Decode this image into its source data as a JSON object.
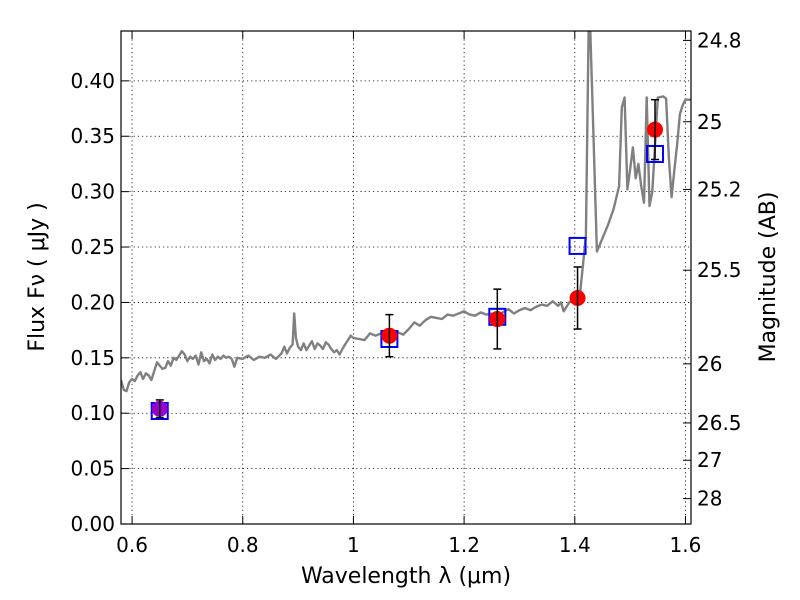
{
  "chart_data": {
    "type": "scatter",
    "xlabel": "Wavelength  λ (μm)",
    "ylabel": "Flux  Fν ( μJy )",
    "y2label": "Magnitude (AB)",
    "xlim": [
      0.58,
      1.61
    ],
    "ylim": [
      0.0,
      0.445
    ],
    "grid": true,
    "x_ticks": [
      {
        "v": 0.6,
        "label": "0.6"
      },
      {
        "v": 0.8,
        "label": "0.8"
      },
      {
        "v": 1.0,
        "label": "1"
      },
      {
        "v": 1.2,
        "label": "1.2"
      },
      {
        "v": 1.4,
        "label": "1.4"
      },
      {
        "v": 1.6,
        "label": "1.6"
      }
    ],
    "y_ticks": [
      {
        "v": 0.0,
        "label": "0.00"
      },
      {
        "v": 0.05,
        "label": "0.05"
      },
      {
        "v": 0.1,
        "label": "0.10"
      },
      {
        "v": 0.15,
        "label": "0.15"
      },
      {
        "v": 0.2,
        "label": "0.20"
      },
      {
        "v": 0.25,
        "label": "0.25"
      },
      {
        "v": 0.3,
        "label": "0.30"
      },
      {
        "v": 0.35,
        "label": "0.35"
      },
      {
        "v": 0.4,
        "label": "0.40"
      }
    ],
    "mag_ticks": [
      {
        "mag": 24.8,
        "label": "24.8"
      },
      {
        "mag": 25.0,
        "label": "25"
      },
      {
        "mag": 25.2,
        "label": "25.2"
      },
      {
        "mag": 25.5,
        "label": "25.5"
      },
      {
        "mag": 26.0,
        "label": "26"
      },
      {
        "mag": 26.5,
        "label": "26.5"
      },
      {
        "mag": 27.0,
        "label": "27"
      },
      {
        "mag": 28.0,
        "label": "28"
      }
    ],
    "series": [
      {
        "kind": "line",
        "color": "#808080",
        "points": [
          [
            0.58,
            0.13
          ],
          [
            0.585,
            0.121
          ],
          [
            0.59,
            0.12
          ],
          [
            0.595,
            0.128
          ],
          [
            0.6,
            0.131
          ],
          [
            0.605,
            0.129
          ],
          [
            0.61,
            0.134
          ],
          [
            0.615,
            0.137
          ],
          [
            0.62,
            0.131
          ],
          [
            0.625,
            0.136
          ],
          [
            0.63,
            0.134
          ],
          [
            0.635,
            0.13
          ],
          [
            0.64,
            0.138
          ],
          [
            0.645,
            0.146
          ],
          [
            0.65,
            0.143
          ],
          [
            0.655,
            0.14
          ],
          [
            0.66,
            0.141
          ],
          [
            0.665,
            0.147
          ],
          [
            0.67,
            0.143
          ],
          [
            0.675,
            0.15
          ],
          [
            0.68,
            0.148
          ],
          [
            0.685,
            0.152
          ],
          [
            0.69,
            0.156
          ],
          [
            0.695,
            0.153
          ],
          [
            0.7,
            0.147
          ],
          [
            0.705,
            0.151
          ],
          [
            0.71,
            0.149
          ],
          [
            0.715,
            0.152
          ],
          [
            0.72,
            0.144
          ],
          [
            0.725,
            0.155
          ],
          [
            0.73,
            0.147
          ],
          [
            0.735,
            0.149
          ],
          [
            0.74,
            0.145
          ],
          [
            0.745,
            0.153
          ],
          [
            0.75,
            0.148
          ],
          [
            0.755,
            0.151
          ],
          [
            0.76,
            0.149
          ],
          [
            0.765,
            0.152
          ],
          [
            0.77,
            0.15
          ],
          [
            0.775,
            0.151
          ],
          [
            0.78,
            0.149
          ],
          [
            0.785,
            0.142
          ],
          [
            0.79,
            0.15
          ],
          [
            0.8,
            0.149
          ],
          [
            0.81,
            0.152
          ],
          [
            0.82,
            0.148
          ],
          [
            0.83,
            0.151
          ],
          [
            0.84,
            0.15
          ],
          [
            0.85,
            0.153
          ],
          [
            0.86,
            0.149
          ],
          [
            0.87,
            0.154
          ],
          [
            0.875,
            0.16
          ],
          [
            0.88,
            0.154
          ],
          [
            0.885,
            0.159
          ],
          [
            0.89,
            0.162
          ],
          [
            0.893,
            0.19
          ],
          [
            0.896,
            0.168
          ],
          [
            0.9,
            0.16
          ],
          [
            0.905,
            0.157
          ],
          [
            0.91,
            0.163
          ],
          [
            0.915,
            0.157
          ],
          [
            0.92,
            0.161
          ],
          [
            0.925,
            0.165
          ],
          [
            0.93,
            0.158
          ],
          [
            0.935,
            0.163
          ],
          [
            0.94,
            0.161
          ],
          [
            0.945,
            0.158
          ],
          [
            0.95,
            0.164
          ],
          [
            0.955,
            0.162
          ],
          [
            0.96,
            0.158
          ],
          [
            0.965,
            0.155
          ],
          [
            0.97,
            0.157
          ],
          [
            0.975,
            0.153
          ],
          [
            0.98,
            0.158
          ],
          [
            0.985,
            0.162
          ],
          [
            0.99,
            0.166
          ],
          [
            0.995,
            0.17
          ],
          [
            1.0,
            0.168
          ],
          [
            1.01,
            0.167
          ],
          [
            1.02,
            0.166
          ],
          [
            1.03,
            0.172
          ],
          [
            1.04,
            0.17
          ],
          [
            1.05,
            0.172
          ],
          [
            1.06,
            0.171
          ],
          [
            1.065,
            0.168
          ],
          [
            1.07,
            0.17
          ],
          [
            1.08,
            0.173
          ],
          [
            1.09,
            0.171
          ],
          [
            1.1,
            0.176
          ],
          [
            1.11,
            0.182
          ],
          [
            1.12,
            0.179
          ],
          [
            1.13,
            0.184
          ],
          [
            1.14,
            0.187
          ],
          [
            1.15,
            0.186
          ],
          [
            1.16,
            0.185
          ],
          [
            1.17,
            0.189
          ],
          [
            1.18,
            0.188
          ],
          [
            1.19,
            0.19
          ],
          [
            1.2,
            0.192
          ],
          [
            1.21,
            0.189
          ],
          [
            1.22,
            0.188
          ],
          [
            1.23,
            0.191
          ],
          [
            1.24,
            0.189
          ],
          [
            1.25,
            0.19
          ],
          [
            1.26,
            0.186
          ],
          [
            1.27,
            0.191
          ],
          [
            1.28,
            0.194
          ],
          [
            1.29,
            0.19
          ],
          [
            1.3,
            0.193
          ],
          [
            1.31,
            0.195
          ],
          [
            1.32,
            0.193
          ],
          [
            1.33,
            0.196
          ],
          [
            1.34,
            0.198
          ],
          [
            1.35,
            0.197
          ],
          [
            1.36,
            0.201
          ],
          [
            1.37,
            0.197
          ],
          [
            1.375,
            0.2
          ],
          [
            1.38,
            0.192
          ],
          [
            1.385,
            0.196
          ],
          [
            1.39,
            0.2
          ],
          [
            1.4,
            0.205
          ],
          [
            1.41,
            0.21
          ],
          [
            1.42,
            0.26
          ],
          [
            1.425,
            0.445
          ],
          [
            1.428,
            0.445
          ],
          [
            1.432,
            0.38
          ],
          [
            1.44,
            0.246
          ],
          [
            1.45,
            0.258
          ],
          [
            1.46,
            0.27
          ],
          [
            1.47,
            0.284
          ],
          [
            1.48,
            0.305
          ],
          [
            1.485,
            0.376
          ],
          [
            1.49,
            0.385
          ],
          [
            1.495,
            0.302
          ],
          [
            1.5,
            0.32
          ],
          [
            1.505,
            0.34
          ],
          [
            1.51,
            0.312
          ],
          [
            1.515,
            0.325
          ],
          [
            1.52,
            0.305
          ],
          [
            1.525,
            0.29
          ],
          [
            1.53,
            0.385
          ],
          [
            1.535,
            0.287
          ],
          [
            1.54,
            0.3
          ],
          [
            1.55,
            0.385
          ],
          [
            1.56,
            0.386
          ],
          [
            1.565,
            0.384
          ],
          [
            1.57,
            0.33
          ],
          [
            1.575,
            0.295
          ],
          [
            1.58,
            0.32
          ],
          [
            1.585,
            0.343
          ],
          [
            1.59,
            0.37
          ],
          [
            1.595,
            0.378
          ],
          [
            1.6,
            0.383
          ],
          [
            1.61,
            0.383
          ]
        ]
      },
      {
        "kind": "squares",
        "color": "#0000ff",
        "points": [
          [
            0.65,
            0.102
          ],
          [
            1.065,
            0.167
          ],
          [
            1.26,
            0.187
          ],
          [
            1.405,
            0.251
          ],
          [
            1.545,
            0.334
          ]
        ]
      },
      {
        "kind": "points",
        "color": "#ff0000",
        "points": [
          [
            1.065,
            0.17
          ],
          [
            1.26,
            0.185
          ],
          [
            1.405,
            0.204
          ],
          [
            1.545,
            0.356
          ]
        ],
        "err": [
          0.019,
          0.027,
          0.028,
          0.027
        ]
      },
      {
        "kind": "points",
        "color": "#9900cc",
        "points": [
          [
            0.65,
            0.104
          ]
        ],
        "err": [
          0.008
        ]
      }
    ]
  }
}
